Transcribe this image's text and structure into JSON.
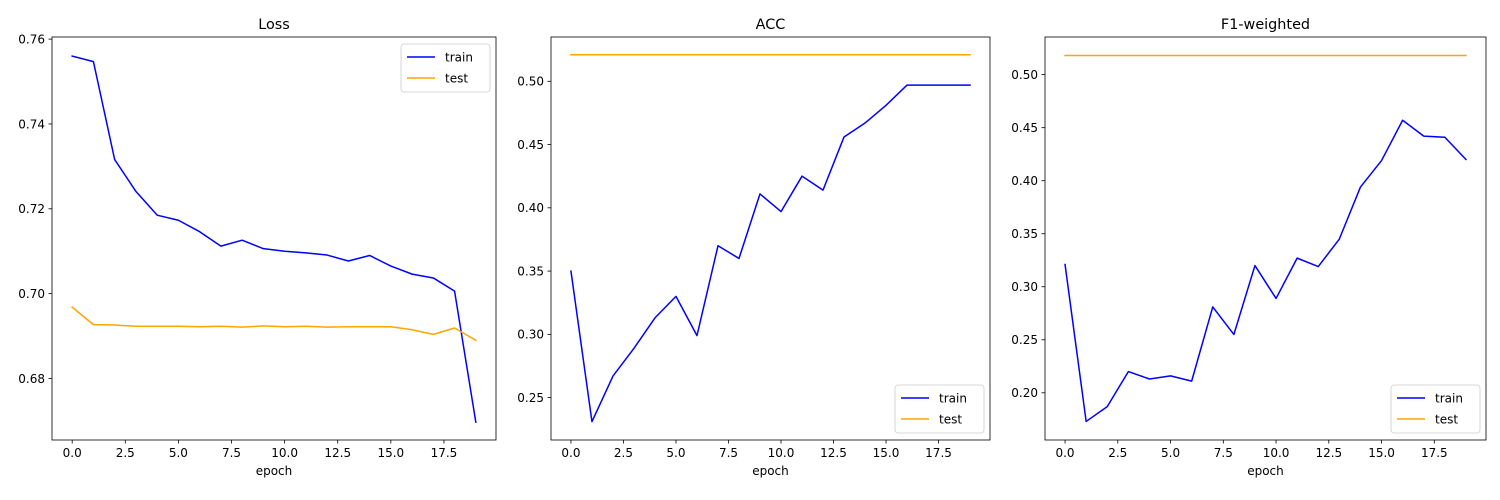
{
  "chart_data": [
    {
      "type": "line",
      "title": "Loss",
      "xlabel": "epoch",
      "ylabel": "",
      "xlim": [
        -0.95,
        19.95
      ],
      "ylim": [
        0.6655,
        0.7605
      ],
      "xticks": [
        "0.0",
        "2.5",
        "5.0",
        "7.5",
        "10.0",
        "12.5",
        "15.0",
        "17.5"
      ],
      "yticks": [
        "0.68",
        "0.70",
        "0.72",
        "0.74",
        "0.76"
      ],
      "legend_position": "top-right",
      "series": [
        {
          "name": "train",
          "color": "#0000ff",
          "x": [
            0,
            1,
            2,
            3,
            4,
            5,
            6,
            7,
            8,
            9,
            10,
            11,
            12,
            13,
            14,
            15,
            16,
            17,
            18,
            19
          ],
          "y": [
            0.756,
            0.7547,
            0.7316,
            0.7241,
            0.7185,
            0.7173,
            0.7146,
            0.7112,
            0.7126,
            0.7106,
            0.71,
            0.7096,
            0.7091,
            0.7077,
            0.709,
            0.7065,
            0.7046,
            0.7037,
            0.7006,
            0.6697
          ]
        },
        {
          "name": "test",
          "color": "#ffa500",
          "x": [
            0,
            1,
            2,
            3,
            4,
            5,
            6,
            7,
            8,
            9,
            10,
            11,
            12,
            13,
            14,
            15,
            16,
            17,
            18,
            19
          ],
          "y": [
            0.6968,
            0.6927,
            0.6926,
            0.6923,
            0.6923,
            0.6923,
            0.6922,
            0.6923,
            0.6921,
            0.6924,
            0.6922,
            0.6923,
            0.6921,
            0.6922,
            0.6922,
            0.6922,
            0.6915,
            0.6904,
            0.6919,
            0.689
          ]
        }
      ]
    },
    {
      "type": "line",
      "title": "ACC",
      "xlabel": "epoch",
      "ylabel": "",
      "xlim": [
        -0.95,
        19.95
      ],
      "ylim": [
        0.2165,
        0.535
      ],
      "xticks": [
        "0.0",
        "2.5",
        "5.0",
        "7.5",
        "10.0",
        "12.5",
        "15.0",
        "17.5"
      ],
      "yticks": [
        "0.25",
        "0.30",
        "0.35",
        "0.40",
        "0.45",
        "0.50"
      ],
      "legend_position": "bottom-right",
      "series": [
        {
          "name": "train",
          "color": "#0000ff",
          "x": [
            0,
            1,
            2,
            3,
            4,
            5,
            6,
            7,
            8,
            9,
            10,
            11,
            12,
            13,
            14,
            15,
            16,
            17,
            18,
            19
          ],
          "y": [
            0.35,
            0.231,
            0.267,
            0.289,
            0.313,
            0.33,
            0.299,
            0.37,
            0.36,
            0.411,
            0.397,
            0.425,
            0.414,
            0.456,
            0.467,
            0.481,
            0.497,
            0.497,
            0.497,
            0.497
          ]
        },
        {
          "name": "test",
          "color": "#ffa500",
          "x": [
            0,
            1,
            2,
            3,
            4,
            5,
            6,
            7,
            8,
            9,
            10,
            11,
            12,
            13,
            14,
            15,
            16,
            17,
            18,
            19
          ],
          "y": [
            0.521,
            0.521,
            0.521,
            0.521,
            0.521,
            0.521,
            0.521,
            0.521,
            0.521,
            0.521,
            0.521,
            0.521,
            0.521,
            0.521,
            0.521,
            0.521,
            0.521,
            0.521,
            0.521,
            0.521
          ]
        }
      ]
    },
    {
      "type": "line",
      "title": "F1-weighted",
      "xlabel": "epoch",
      "ylabel": "",
      "xlim": [
        -0.95,
        19.95
      ],
      "ylim": [
        0.1555,
        0.5355
      ],
      "xticks": [
        "0.0",
        "2.5",
        "5.0",
        "7.5",
        "10.0",
        "12.5",
        "15.0",
        "17.5"
      ],
      "yticks": [
        "0.20",
        "0.25",
        "0.30",
        "0.35",
        "0.40",
        "0.45",
        "0.50"
      ],
      "legend_position": "bottom-right",
      "series": [
        {
          "name": "train",
          "color": "#0000ff",
          "x": [
            0,
            1,
            2,
            3,
            4,
            5,
            6,
            7,
            8,
            9,
            10,
            11,
            12,
            13,
            14,
            15,
            16,
            17,
            18,
            19
          ],
          "y": [
            0.321,
            0.173,
            0.187,
            0.22,
            0.213,
            0.216,
            0.211,
            0.281,
            0.255,
            0.32,
            0.289,
            0.327,
            0.319,
            0.345,
            0.394,
            0.419,
            0.457,
            0.442,
            0.441,
            0.42
          ]
        },
        {
          "name": "test",
          "color": "#ffa500",
          "x": [
            0,
            1,
            2,
            3,
            4,
            5,
            6,
            7,
            8,
            9,
            10,
            11,
            12,
            13,
            14,
            15,
            16,
            17,
            18,
            19
          ],
          "y": [
            0.518,
            0.518,
            0.518,
            0.518,
            0.518,
            0.518,
            0.518,
            0.518,
            0.518,
            0.518,
            0.518,
            0.518,
            0.518,
            0.518,
            0.518,
            0.518,
            0.518,
            0.518,
            0.518,
            0.518
          ]
        }
      ]
    }
  ]
}
